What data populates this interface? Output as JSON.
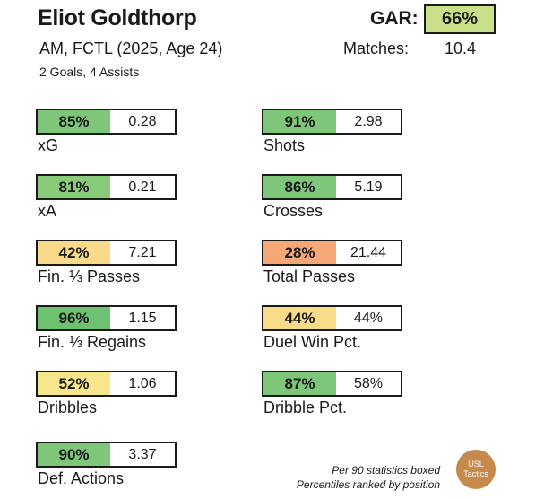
{
  "header": {
    "player_name": "Eliot Goldthorp",
    "gar_label": "GAR:",
    "gar_value": "66%",
    "gar_color": "#c9e089",
    "subtitle": "AM, FCTL (2025, Age 24)",
    "matches_label": "Matches:",
    "matches_value": "10.4",
    "goals_assists": "2 Goals,  4 Assists"
  },
  "stats": [
    {
      "label": "xG",
      "percentile": "85%",
      "value": "0.28",
      "color": "#7dc67a"
    },
    {
      "label": "Shots",
      "percentile": "91%",
      "value": "2.98",
      "color": "#7dc67a"
    },
    {
      "label": "xA",
      "percentile": "81%",
      "value": "0.21",
      "color": "#8acb7a"
    },
    {
      "label": "Crosses",
      "percentile": "86%",
      "value": "5.19",
      "color": "#7dc67a"
    },
    {
      "label": "Fin. ⅓ Passes",
      "percentile": "42%",
      "value": "7.21",
      "color": "#f9d98a"
    },
    {
      "label": "Total Passes",
      "percentile": "28%",
      "value": "21.44",
      "color": "#f5a876"
    },
    {
      "label": "Fin. ⅓ Regains",
      "percentile": "96%",
      "value": "1.15",
      "color": "#6fc172"
    },
    {
      "label": "Duel Win Pct.",
      "percentile": "44%",
      "value": "44%",
      "color": "#f9dc8a"
    },
    {
      "label": "Dribbles",
      "percentile": "52%",
      "value": "1.06",
      "color": "#f7e78c"
    },
    {
      "label": "Dribble Pct.",
      "percentile": "87%",
      "value": "58%",
      "color": "#7dc67a"
    },
    {
      "label": "Def. Actions",
      "percentile": "90%",
      "value": "3.37",
      "color": "#7dc67a"
    }
  ],
  "footer": {
    "note_line1": "Per 90 statistics boxed",
    "note_line2": "Percentiles ranked by position",
    "logo_line1": "USL",
    "logo_line2": "Tactics"
  }
}
